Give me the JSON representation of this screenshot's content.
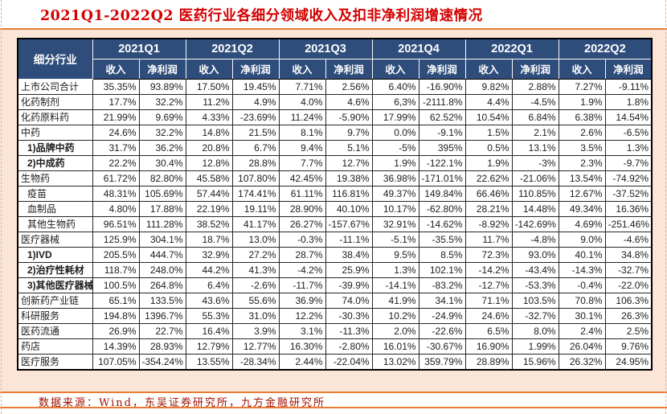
{
  "title": "2021Q1-2022Q2 医药行业各细分领域收入及扣非净利润增速情况",
  "source_note": "数据来源：Wind，东吴证券研究所，九方金融研究所",
  "colors": {
    "header_bg": "#2E4D7B",
    "title_red": "#D40000",
    "accent_orange": "#E87A34",
    "body_peach": "#FBE5D6",
    "corner_red": "#C00000",
    "source_red": "#A01000"
  },
  "table": {
    "corner_header": "细分行业",
    "quarters": [
      "2021Q1",
      "2021Q2",
      "2021Q3",
      "2021Q4",
      "2022Q1",
      "2022Q2"
    ],
    "metric_headers": [
      "收入",
      "净利润"
    ],
    "rows": [
      {
        "name": "上市公司合计",
        "style": "top",
        "values": [
          "35.35%",
          "93.89%",
          "17.50%",
          "19.45%",
          "7.71%",
          "2.56%",
          "6.40%",
          "-16.90%",
          "9.82%",
          "2.88%",
          "7.27%",
          "-9.11%"
        ]
      },
      {
        "name": "化药制剂",
        "style": "top",
        "values": [
          "17.7%",
          "32.2%",
          "11.2%",
          "4.9%",
          "4.0%",
          "4.6%",
          "6,3%",
          "-2111.8%",
          "4.4%",
          "-4.5%",
          "1.9%",
          "1.8%"
        ]
      },
      {
        "name": "化药原料药",
        "style": "top",
        "values": [
          "21.99%",
          "9.69%",
          "4.33%",
          "-23.69%",
          "11.24%",
          "-5.90%",
          "17.99%",
          "62.52%",
          "10.54%",
          "6.84%",
          "6.38%",
          "14.54%"
        ]
      },
      {
        "name": "中药",
        "style": "top",
        "values": [
          "24.6%",
          "32.2%",
          "14.8%",
          "21.5%",
          "8.1%",
          "9.7%",
          "0.0%",
          "-9.1%",
          "1.5%",
          "2.1%",
          "2.6%",
          "-6.5%"
        ]
      },
      {
        "name": "1)品牌中药",
        "style": "sub-bold",
        "values": [
          "31.7%",
          "36.2%",
          "20.8%",
          "6.7%",
          "9.4%",
          "5.1%",
          "-5%",
          "395%",
          "0.5%",
          "13.1%",
          "3.5%",
          "1.3%"
        ]
      },
      {
        "name": "2)中成药",
        "style": "sub-bold",
        "values": [
          "22.2%",
          "30.4%",
          "12.8%",
          "28.8%",
          "7.7%",
          "12.7%",
          "1.9%",
          "-122.1%",
          "1.9%",
          "-3%",
          "2.3%",
          "-9.7%"
        ]
      },
      {
        "name": "生物药",
        "style": "top",
        "values": [
          "61.72%",
          "82.80%",
          "45.58%",
          "107.80%",
          "42.45%",
          "19.38%",
          "36.98%",
          "-171.01%",
          "22.62%",
          "-21.06%",
          "13.54%",
          "-74.92%"
        ]
      },
      {
        "name": "疫苗",
        "style": "sub",
        "values": [
          "48.31%",
          "105.69%",
          "57.44%",
          "174.41%",
          "61.11%",
          "116.81%",
          "49.37%",
          "149.84%",
          "66.46%",
          "110.85%",
          "12.67%",
          "-37.52%"
        ]
      },
      {
        "name": "血制品",
        "style": "sub",
        "values": [
          "4.80%",
          "17.88%",
          "22.19%",
          "19.11%",
          "28.90%",
          "40.10%",
          "10.17%",
          "-62.80%",
          "28.21%",
          "14.48%",
          "49.34%",
          "16.36%"
        ]
      },
      {
        "name": "其他生物药",
        "style": "sub",
        "values": [
          "96.51%",
          "111.28%",
          "38.52%",
          "41.17%",
          "26.27%",
          "-157.67%",
          "32.91%",
          "-14.62%",
          "-8.92%",
          "-142.69%",
          "4.69%",
          "-251.46%"
        ]
      },
      {
        "name": "医疗器械",
        "style": "top",
        "values": [
          "125.9%",
          "304.1%",
          "18.7%",
          "13.0%",
          "-0.3%",
          "-11.1%",
          "-5.1%",
          "-35.5%",
          "11.7%",
          "-4.8%",
          "9.0%",
          "-4.6%"
        ]
      },
      {
        "name": "1)IVD",
        "style": "sub-bold",
        "values": [
          "205.5%",
          "444.7%",
          "32.9%",
          "27.2%",
          "28.7%",
          "38.4%",
          "9.5%",
          "8.5%",
          "72.3%",
          "93.0%",
          "40.1%",
          "34.8%"
        ]
      },
      {
        "name": "2)治疗性耗材",
        "style": "sub-bold",
        "values": [
          "118.7%",
          "248.0%",
          "44.2%",
          "41.3%",
          "-4.2%",
          "25.9%",
          "1.3%",
          "102.1%",
          "-14.2%",
          "-43.4%",
          "-14.3%",
          "-32.7%"
        ]
      },
      {
        "name": "3)其他医疗器械",
        "style": "sub-bold",
        "values": [
          "100.5%",
          "264.8%",
          "6.4%",
          "-2.6%",
          "-11.7%",
          "-39.9%",
          "-14.1%",
          "-83.2%",
          "-12.7%",
          "-53.3%",
          "-0.4%",
          "-22.0%"
        ]
      },
      {
        "name": "创新药产业链",
        "style": "top",
        "values": [
          "65.1%",
          "133.5%",
          "43.6%",
          "55.6%",
          "36.9%",
          "74.0%",
          "41.9%",
          "34.1%",
          "71.1%",
          "103.5%",
          "70.8%",
          "106.3%"
        ]
      },
      {
        "name": "科研服务",
        "style": "top",
        "values": [
          "194.8%",
          "1396.7%",
          "55.3%",
          "31.0%",
          "12.2%",
          "-30.3%",
          "10.2%",
          "-24.9%",
          "24.6%",
          "-32.7%",
          "30.1%",
          "26.3%"
        ]
      },
      {
        "name": "医药流通",
        "style": "top",
        "values": [
          "26.9%",
          "22.7%",
          "16.4%",
          "3.9%",
          "3.1%",
          "-11.3%",
          "2.0%",
          "-22.6%",
          "6.5%",
          "8.0%",
          "2.4%",
          "2.5%"
        ]
      },
      {
        "name": "药店",
        "style": "top",
        "values": [
          "14.39%",
          "28.93%",
          "12.79%",
          "12.77%",
          "16.30%",
          "-2.80%",
          "16.01%",
          "-30.67%",
          "16.90%",
          "1.99%",
          "26.04%",
          "9.76%"
        ]
      },
      {
        "name": "医疗服务",
        "style": "top",
        "values": [
          "107.05%",
          "-354.24%",
          "13.55%",
          "-28.34%",
          "2.44%",
          "-22.04%",
          "13.02%",
          "359.79%",
          "28.89%",
          "15.96%",
          "26.32%",
          "24.95%"
        ]
      }
    ]
  }
}
